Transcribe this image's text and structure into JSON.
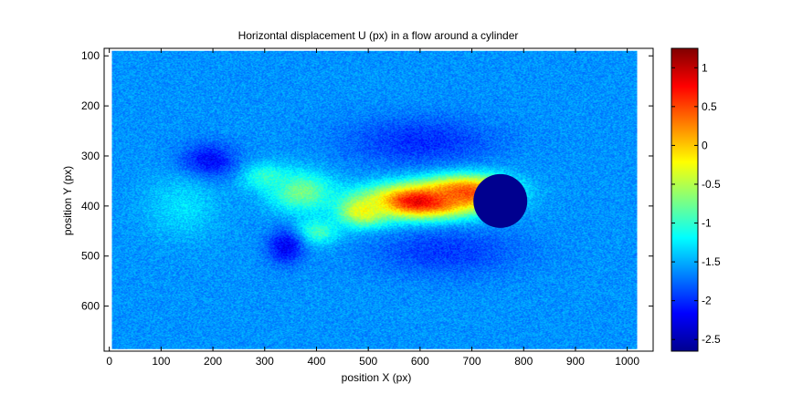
{
  "chart_data": {
    "type": "heatmap",
    "title": "Horizontal displacement U (px) in a flow around a cylinder",
    "xlabel": "position X (px)",
    "ylabel": "position Y (px)",
    "xlim": [
      -10,
      1050
    ],
    "ylim": [
      85,
      690
    ],
    "y_reversed": true,
    "grid": false,
    "colormap": "jet",
    "clim": [
      -2.65,
      1.25
    ],
    "x_ticks": [
      0,
      100,
      200,
      300,
      400,
      500,
      600,
      700,
      800,
      900,
      1000
    ],
    "y_ticks": [
      100,
      200,
      300,
      400,
      500,
      600
    ],
    "colorbar_ticks": [
      1,
      0.5,
      0,
      -0.5,
      -1,
      -1.5,
      -2,
      -2.5
    ],
    "colorbar_tick_labels": [
      "1",
      "0.5",
      "0",
      "-0.5",
      "-1",
      "-1.5",
      "-2",
      "-2.5"
    ],
    "field": {
      "x_extent": [
        5,
        1020
      ],
      "y_extent": [
        90,
        685
      ],
      "background_value": -1.6,
      "cylinder": {
        "x": 755,
        "y": 390,
        "radius": 52,
        "value": -2.65
      },
      "features": [
        {
          "kind": "wake_core",
          "x": 600,
          "y": 390,
          "rx": 115,
          "ry": 40,
          "value": 0.95
        },
        {
          "kind": "wake_tail",
          "x": 690,
          "y": 370,
          "rx": 90,
          "ry": 38,
          "value": 0.5
        },
        {
          "kind": "wake_front",
          "x": 490,
          "y": 410,
          "rx": 55,
          "ry": 35,
          "value": -0.2
        },
        {
          "kind": "vortex_upper",
          "x": 370,
          "y": 370,
          "rx": 70,
          "ry": 45,
          "value": -0.7
        },
        {
          "kind": "vortex_mid",
          "x": 300,
          "y": 340,
          "rx": 55,
          "ry": 30,
          "value": -1.0
        },
        {
          "kind": "vortex_lower",
          "x": 400,
          "y": 450,
          "rx": 50,
          "ry": 30,
          "value": -0.9
        },
        {
          "kind": "low_pocket",
          "x": 190,
          "y": 310,
          "rx": 60,
          "ry": 40,
          "value": -2.2
        },
        {
          "kind": "low_pocket",
          "x": 340,
          "y": 480,
          "rx": 40,
          "ry": 40,
          "value": -2.2
        },
        {
          "kind": "low_band",
          "x": 600,
          "y": 270,
          "rx": 160,
          "ry": 55,
          "value": -2.0
        },
        {
          "kind": "low_band",
          "x": 650,
          "y": 490,
          "rx": 160,
          "ry": 55,
          "value": -1.95
        },
        {
          "kind": "high_left",
          "x": 140,
          "y": 400,
          "rx": 80,
          "ry": 70,
          "value": -1.3
        }
      ]
    }
  }
}
